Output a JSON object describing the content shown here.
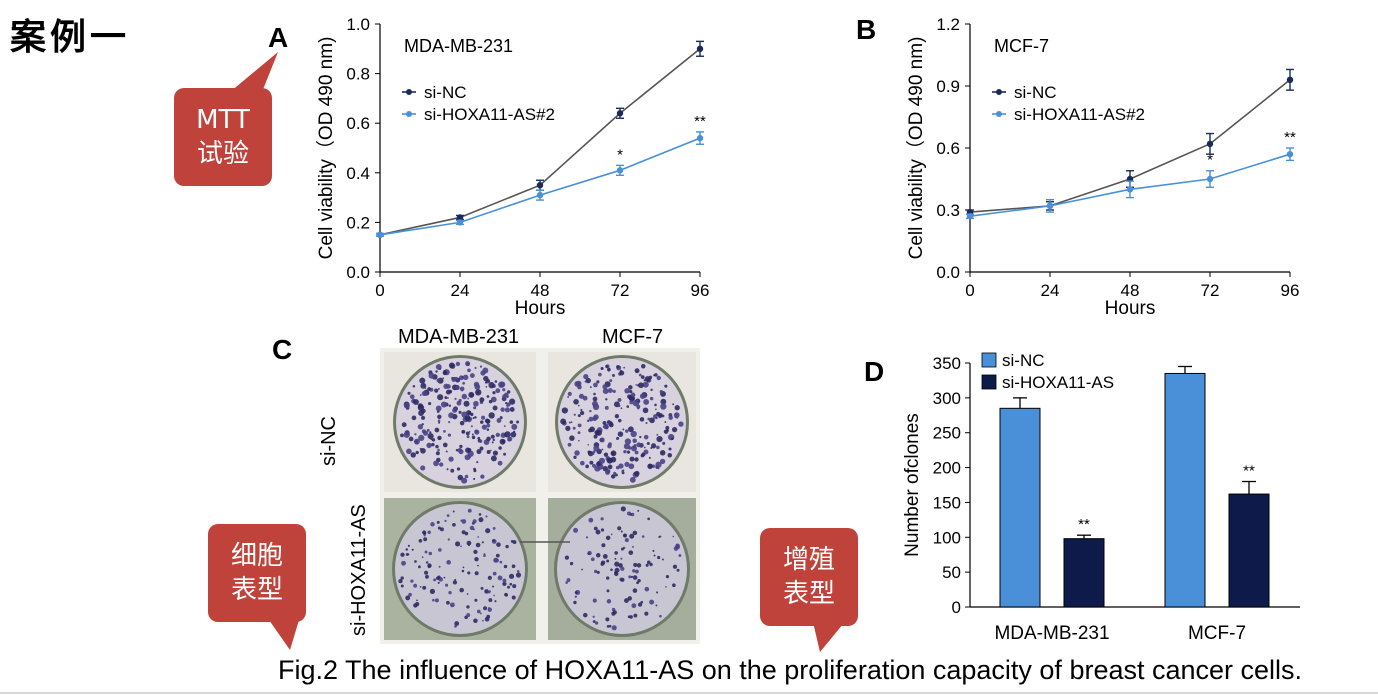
{
  "heading": "案例一",
  "callouts": {
    "mtt": [
      "MTT",
      "试验"
    ],
    "cell_phenotype": [
      "细胞",
      "表型"
    ],
    "proliferation_phenotype": [
      "增殖",
      "表型"
    ]
  },
  "panels": {
    "A": "A",
    "B": "B",
    "C": "C",
    "D": "D"
  },
  "photo": {
    "col_labels": [
      "MDA-MB-231",
      "MCF-7"
    ],
    "row_labels": [
      "si-NC",
      "si-HOXA11-AS"
    ]
  },
  "caption": "Fig.2 The influence of HOXA11-AS on the proliferation capacity of breast cancer cells.",
  "colors": {
    "callout": "#c0433b",
    "series_dark": "#1c2a5a",
    "series_light": "#4a90d9",
    "bar_light": "#4a90d9",
    "bar_dark": "#0d1a4a"
  },
  "chart_data": [
    {
      "panel": "A",
      "type": "line",
      "title": "MDA-MB-231",
      "xlabel": "Hours",
      "ylabel": "Cell viability（OD 490 nm)",
      "x": [
        0,
        24,
        48,
        72,
        96
      ],
      "xticks": [
        "0",
        "24",
        "48",
        "72",
        "96"
      ],
      "ylim": [
        0,
        1.0
      ],
      "yticks": [
        "0.0",
        "0.2",
        "0.4",
        "0.6",
        "0.8",
        "1.0"
      ],
      "series": [
        {
          "name": "si-NC",
          "values": [
            0.15,
            0.22,
            0.35,
            0.64,
            0.9
          ],
          "errors": [
            0.005,
            0.008,
            0.02,
            0.02,
            0.03
          ]
        },
        {
          "name": "si-HOXA11-AS#2",
          "values": [
            0.15,
            0.2,
            0.31,
            0.41,
            0.54
          ],
          "errors": [
            0.005,
            0.008,
            0.02,
            0.02,
            0.025
          ]
        }
      ],
      "annotations": [
        "",
        "",
        "",
        "*",
        "**"
      ],
      "legend": "upper-left"
    },
    {
      "panel": "B",
      "type": "line",
      "title": "MCF-7",
      "xlabel": "Hours",
      "ylabel": "Cell viability（OD 490 nm)",
      "x": [
        0,
        24,
        48,
        72,
        96
      ],
      "xticks": [
        "0",
        "24",
        "48",
        "72",
        "96"
      ],
      "ylim": [
        0,
        1.2
      ],
      "yticks": [
        "0.0",
        "0.3",
        "0.6",
        "0.9",
        "1.2"
      ],
      "series": [
        {
          "name": "si-NC",
          "values": [
            0.29,
            0.32,
            0.45,
            0.62,
            0.93
          ],
          "errors": [
            0.01,
            0.02,
            0.04,
            0.05,
            0.05
          ]
        },
        {
          "name": "si-HOXA11-AS#2",
          "values": [
            0.27,
            0.32,
            0.4,
            0.45,
            0.57
          ],
          "errors": [
            0.01,
            0.03,
            0.04,
            0.04,
            0.03
          ]
        }
      ],
      "annotations": [
        "",
        "",
        "",
        "*",
        "**"
      ],
      "legend": "upper-left"
    },
    {
      "panel": "D",
      "type": "bar",
      "xlabel": "",
      "ylabel": "Number ofclones",
      "categories": [
        "MDA-MB-231",
        "MCF-7"
      ],
      "ylim": [
        0,
        350
      ],
      "yticks": [
        "0",
        "50",
        "100",
        "150",
        "200",
        "250",
        "300",
        "350"
      ],
      "series": [
        {
          "name": "si-NC",
          "values": [
            285,
            335
          ],
          "errors": [
            15,
            10
          ]
        },
        {
          "name": "si-HOXA11-AS",
          "values": [
            98,
            162
          ],
          "errors": [
            5,
            18
          ]
        }
      ],
      "annotations": [
        [
          "",
          "**"
        ],
        [
          "",
          "**"
        ]
      ],
      "legend": "top-left"
    }
  ]
}
